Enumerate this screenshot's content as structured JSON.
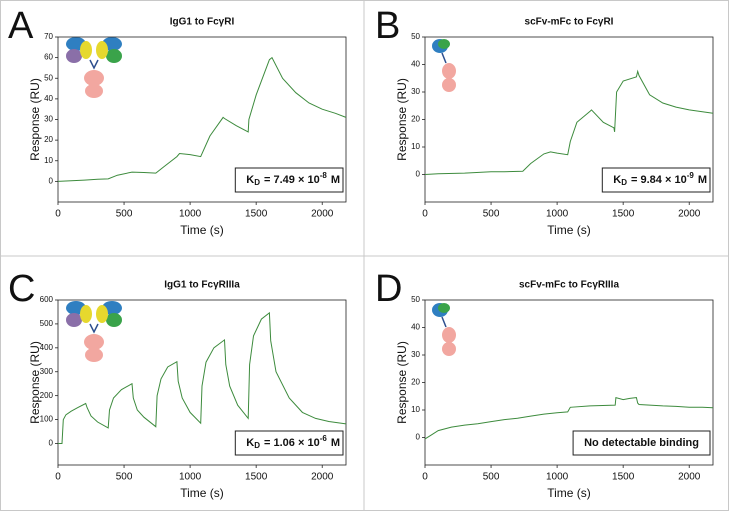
{
  "chart_data": [
    {
      "type": "line",
      "panel": "A",
      "title": "IgG1 to FcγRI",
      "x_label": "Time (s)",
      "y_label": "Response (RU)",
      "xlim": [
        0,
        2180
      ],
      "ylim": [
        -10,
        70
      ],
      "xticks": [
        0,
        500,
        1000,
        1500,
        2000
      ],
      "yticks": [
        0,
        10,
        20,
        30,
        40,
        50,
        60,
        70
      ],
      "series": [
        {
          "color": "#3d8b3d",
          "x": [
            0,
            100,
            200,
            300,
            380,
            450,
            560,
            650,
            740,
            800,
            900,
            920,
            1000,
            1080,
            1150,
            1250,
            1260,
            1350,
            1440,
            1445,
            1500,
            1600,
            1620,
            1700,
            1800,
            1900,
            2000,
            2100,
            2180
          ],
          "values": [
            0,
            0.3,
            0.6,
            1,
            1.2,
            3,
            4.5,
            4.3,
            4,
            7,
            12,
            13.5,
            13,
            12,
            22,
            31,
            30.5,
            27,
            24,
            30,
            42,
            59,
            60,
            50,
            43,
            38,
            35,
            33,
            31
          ]
        }
      ],
      "annotation": {
        "symbol": "K",
        "subscript": "D",
        "text": "= 7.49 × 10",
        "superscript": "-8",
        "unit": "M"
      }
    },
    {
      "type": "line",
      "panel": "B",
      "title": "scFv-mFc to FcγRI",
      "x_label": "Time (s)",
      "y_label": "Response (RU)",
      "xlim": [
        0,
        2180
      ],
      "ylim": [
        -10,
        50
      ],
      "xticks": [
        0,
        500,
        1000,
        1500,
        2000
      ],
      "yticks": [
        0,
        10,
        20,
        30,
        40,
        50
      ],
      "series": [
        {
          "color": "#3d8b3d",
          "x": [
            0,
            100,
            300,
            500,
            600,
            740,
            800,
            900,
            950,
            1000,
            1080,
            1100,
            1150,
            1250,
            1260,
            1350,
            1430,
            1435,
            1450,
            1500,
            1600,
            1610,
            1620,
            1700,
            1800,
            1900,
            2000,
            2100,
            2180
          ],
          "values": [
            0,
            0.3,
            0.5,
            1,
            1,
            1.2,
            4,
            7.5,
            8.2,
            7.8,
            7.2,
            12,
            19,
            23,
            23.5,
            19,
            17,
            15.5,
            30,
            34,
            35.5,
            37.5,
            36,
            29,
            26,
            24.5,
            23.5,
            22.8,
            22.3
          ]
        }
      ],
      "annotation": {
        "symbol": "K",
        "subscript": "D",
        "text": "= 9.84 × 10",
        "superscript": "-9",
        "unit": "M"
      }
    },
    {
      "type": "line",
      "panel": "C",
      "title": "IgG1 to FcγRIIIa",
      "x_label": "Time (s)",
      "y_label": "Response (RU)",
      "xlim": [
        0,
        2180
      ],
      "ylim": [
        -90,
        600
      ],
      "xticks": [
        0,
        500,
        1000,
        1500,
        2000
      ],
      "yticks": [
        0,
        100,
        200,
        300,
        400,
        500,
        600
      ],
      "series": [
        {
          "color": "#3d8b3d",
          "x": [
            0,
            30,
            40,
            60,
            100,
            150,
            210,
            220,
            250,
            300,
            380,
            390,
            420,
            480,
            560,
            570,
            600,
            650,
            740,
            750,
            780,
            830,
            900,
            910,
            940,
            1000,
            1080,
            1090,
            1120,
            1180,
            1260,
            1270,
            1300,
            1360,
            1440,
            1450,
            1480,
            1540,
            1600,
            1610,
            1650,
            1750,
            1850,
            1950,
            2050,
            2180
          ],
          "values": [
            0,
            0,
            100,
            120,
            135,
            150,
            167,
            150,
            115,
            90,
            65,
            140,
            190,
            225,
            250,
            190,
            140,
            110,
            70,
            200,
            270,
            320,
            342,
            260,
            190,
            130,
            85,
            240,
            340,
            400,
            433,
            330,
            240,
            160,
            105,
            330,
            450,
            520,
            546,
            430,
            300,
            190,
            130,
            105,
            92,
            82
          ]
        }
      ],
      "annotation": {
        "symbol": "K",
        "subscript": "D",
        "text": "= 1.06 × 10",
        "superscript": "-6",
        "unit": "M"
      }
    },
    {
      "type": "line",
      "panel": "D",
      "title": "scFv-mFc to FcγRIIIa",
      "x_label": "Time (s)",
      "y_label": "Response (RU)",
      "xlim": [
        0,
        2180
      ],
      "ylim": [
        -10,
        50
      ],
      "xticks": [
        0,
        500,
        1000,
        1500,
        2000
      ],
      "yticks": [
        0,
        10,
        20,
        30,
        40,
        50
      ],
      "series": [
        {
          "color": "#3d8b3d",
          "x": [
            0,
            50,
            100,
            200,
            300,
            400,
            500,
            600,
            700,
            800,
            900,
            1000,
            1080,
            1100,
            1250,
            1440,
            1445,
            1500,
            1550,
            1600,
            1610,
            1620,
            1700,
            1800,
            1900,
            2000,
            2100,
            2180
          ],
          "values": [
            -0.5,
            1,
            2.5,
            3.8,
            4.5,
            5,
            5.8,
            6.5,
            7,
            7.8,
            8.5,
            9,
            9.3,
            11,
            11.5,
            11.8,
            14.5,
            13.8,
            14.2,
            14.5,
            12.5,
            12,
            11.8,
            11.5,
            11.3,
            11,
            11,
            10.8
          ]
        }
      ],
      "annotation": {
        "text": "No detectable binding"
      }
    }
  ]
}
